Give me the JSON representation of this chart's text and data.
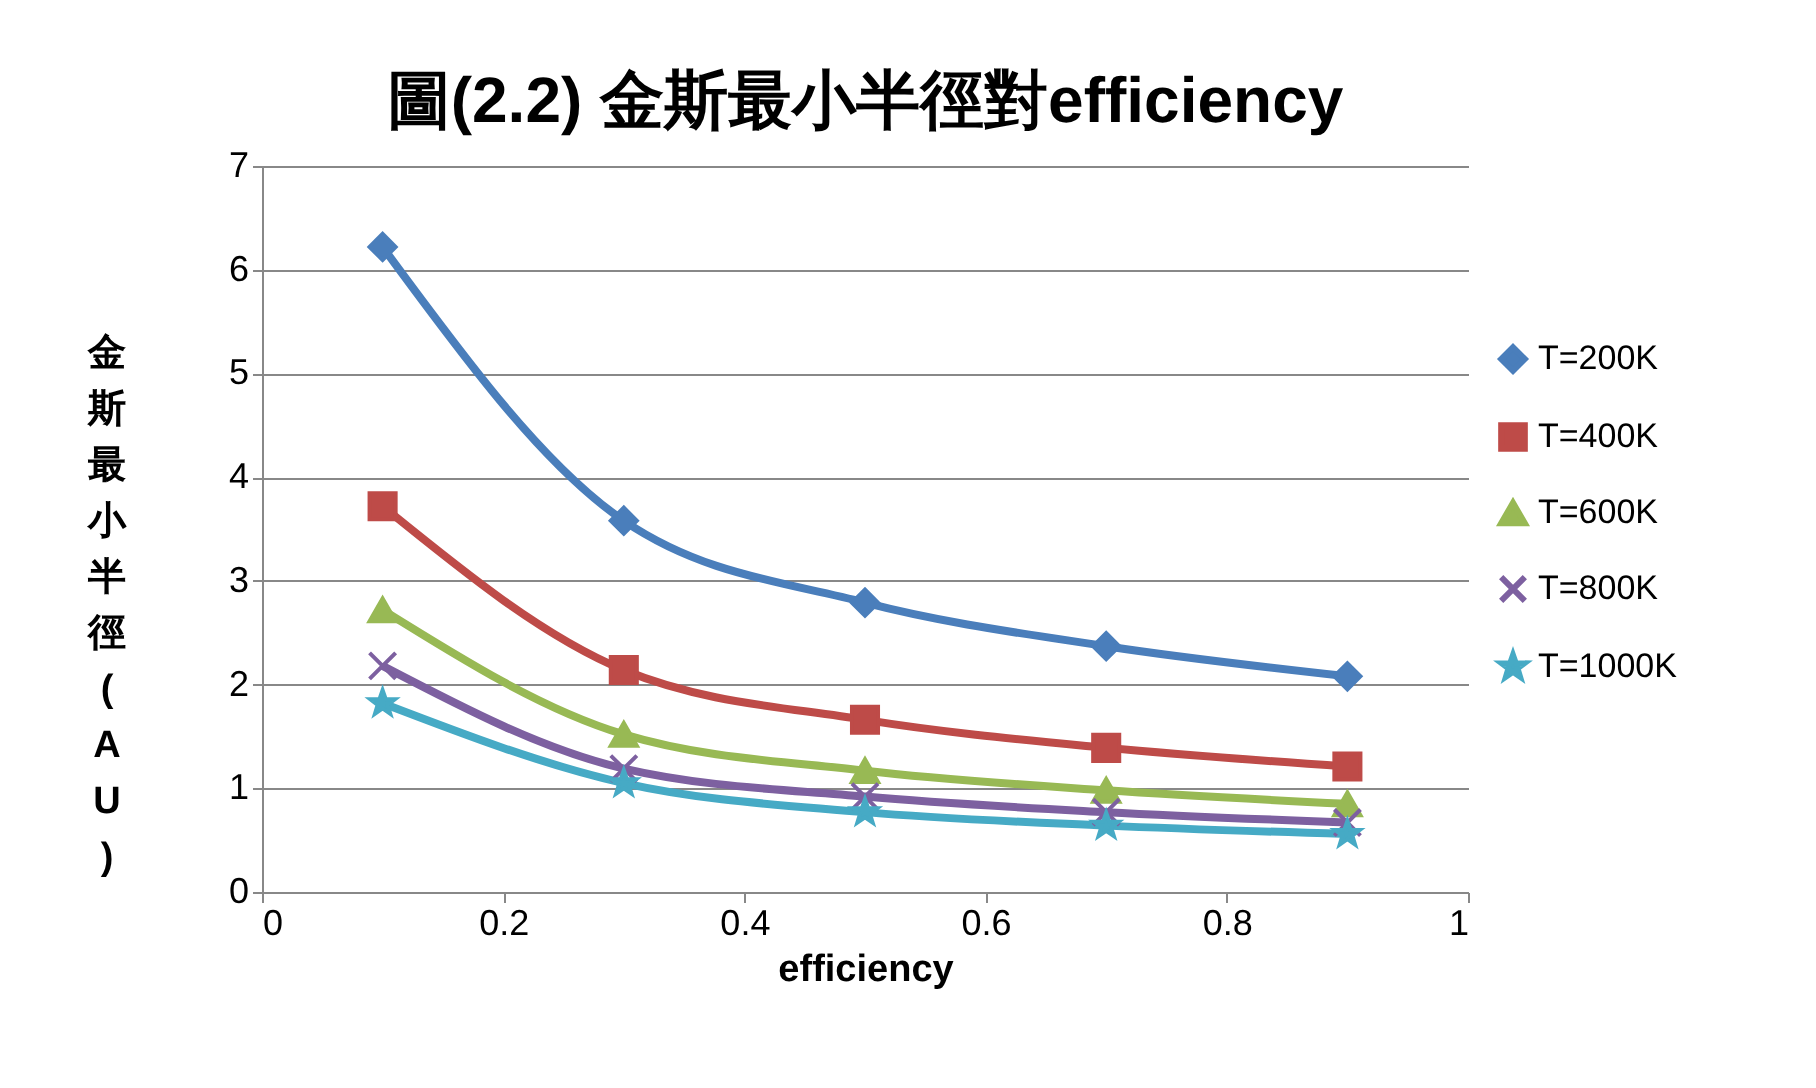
{
  "chart_data": {
    "type": "line",
    "title": "圖(2.2)   金斯最小半徑對efficiency",
    "xlabel": "efficiency",
    "ylabel": "金斯最小半徑(AU)",
    "x": [
      0.1,
      0.3,
      0.5,
      0.7,
      0.9
    ],
    "xlim": [
      0,
      1
    ],
    "xticks": [
      0,
      0.2,
      0.4,
      0.6,
      0.8,
      1
    ],
    "ylim": [
      0,
      7
    ],
    "yticks": [
      0,
      1,
      2,
      3,
      4,
      5,
      6,
      7
    ],
    "grid": "y",
    "legend": "right",
    "series": [
      {
        "name": "T=200K",
        "color": "#4a7ebb",
        "marker": "diamond",
        "values": [
          6.22,
          3.58,
          2.79,
          2.37,
          2.08
        ]
      },
      {
        "name": "T=400K",
        "color": "#be4b48",
        "marker": "square",
        "values": [
          3.72,
          2.14,
          1.66,
          1.39,
          1.21
        ]
      },
      {
        "name": "T=600K",
        "color": "#98b954",
        "marker": "triangle",
        "values": [
          2.72,
          1.52,
          1.17,
          0.98,
          0.85
        ]
      },
      {
        "name": "T=800K",
        "color": "#7d60a0",
        "marker": "cross",
        "values": [
          2.18,
          1.19,
          0.92,
          0.77,
          0.67
        ]
      },
      {
        "name": "T=1000K",
        "color": "#46aac5",
        "marker": "star",
        "values": [
          1.82,
          1.05,
          0.77,
          0.64,
          0.56
        ]
      }
    ]
  }
}
